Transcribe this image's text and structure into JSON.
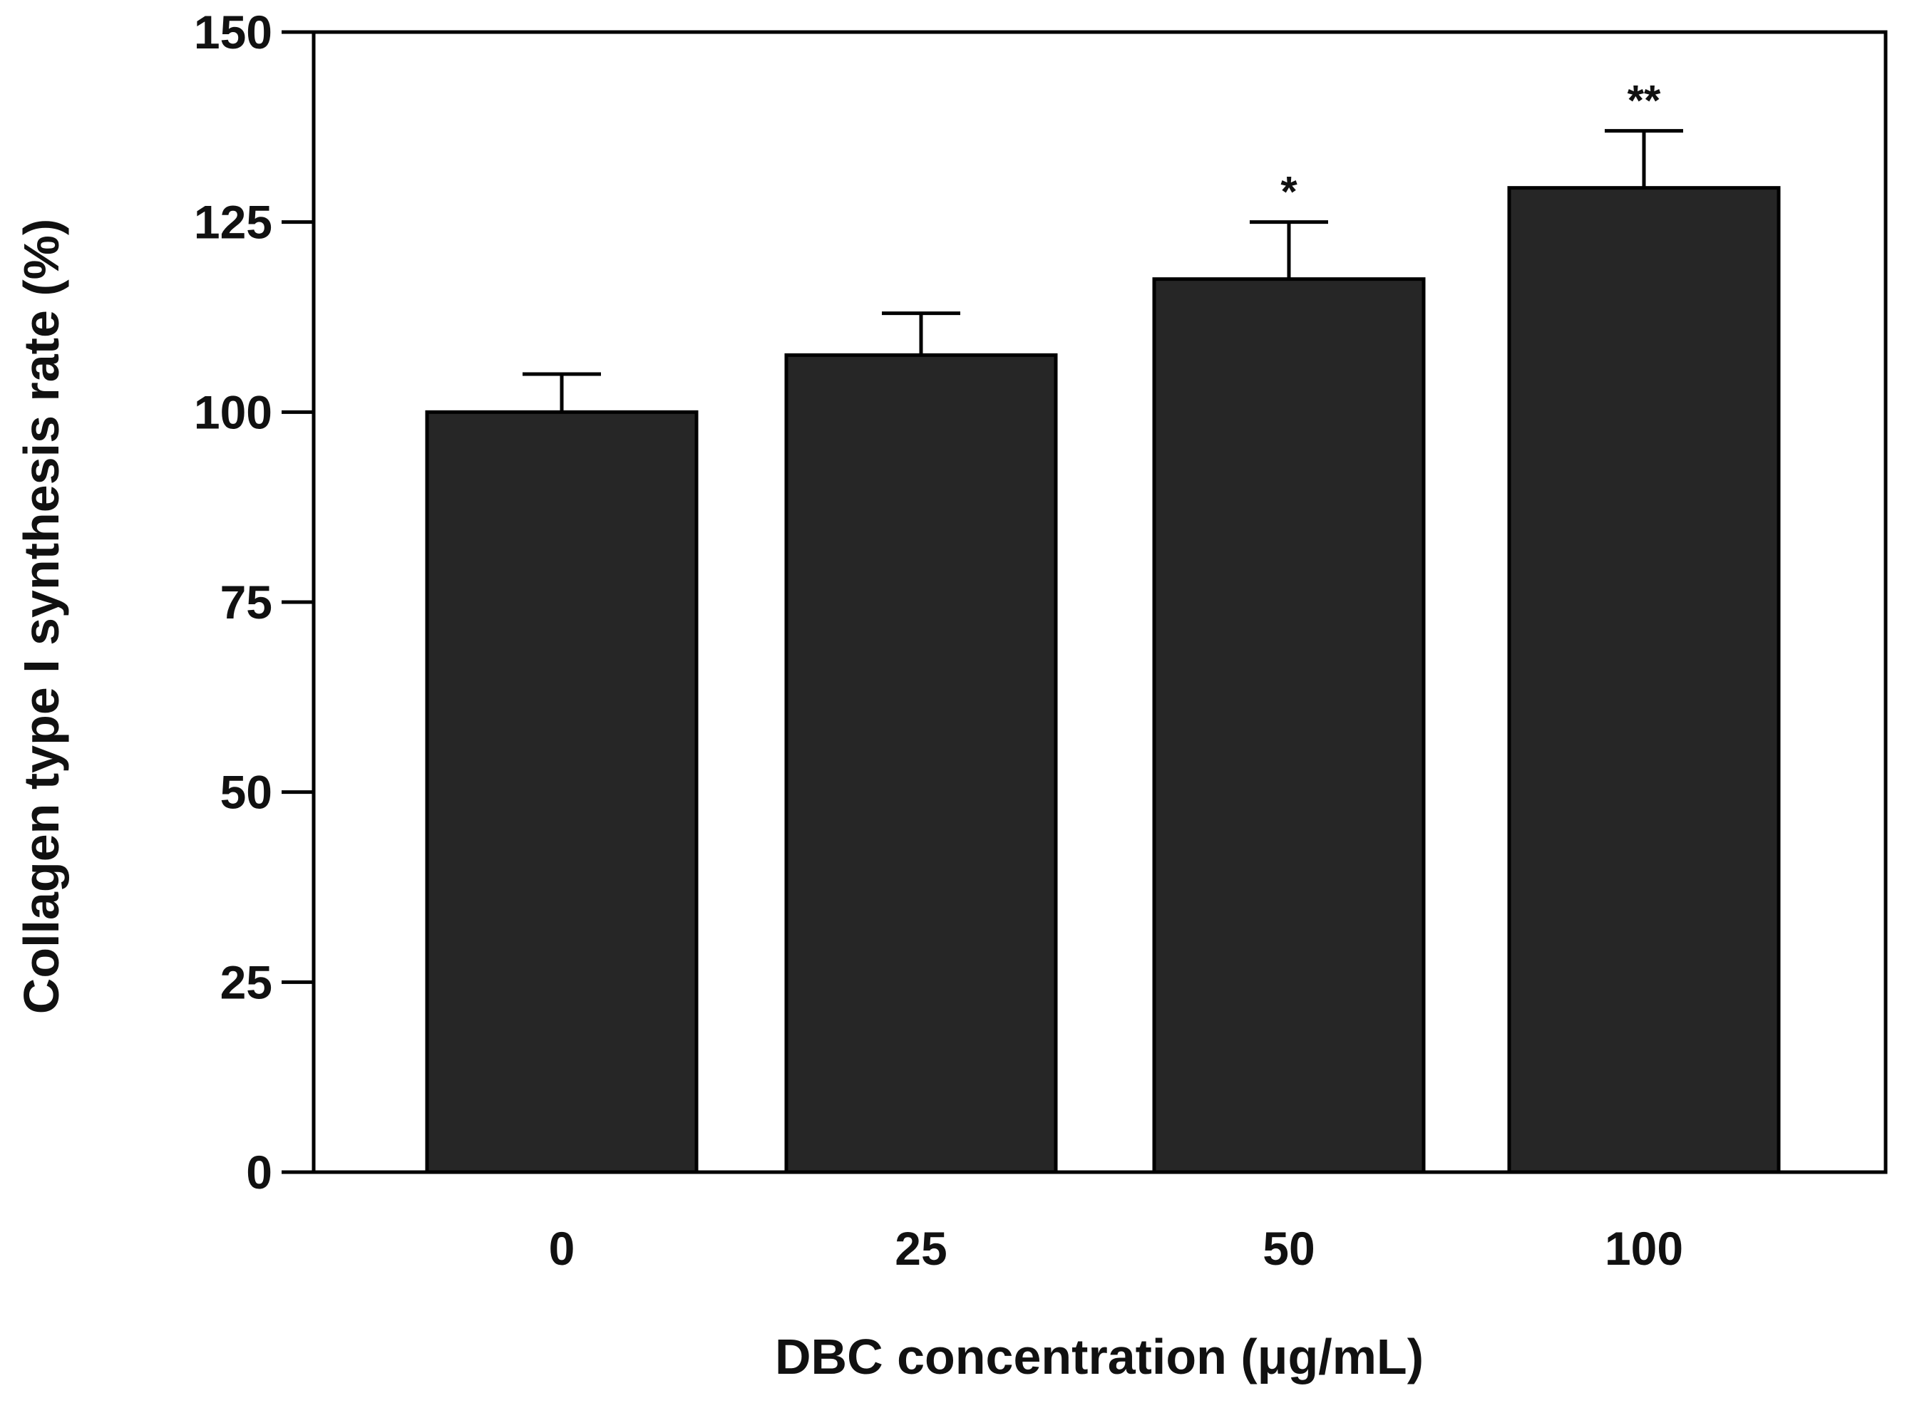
{
  "chart_data": {
    "type": "bar",
    "title": "",
    "xlabel": "DBC concentration  (μg/mL)",
    "ylabel": "Collagen type I synthesis rate (%)",
    "categories": [
      "0",
      "25",
      "50",
      "100"
    ],
    "values": [
      100,
      107.5,
      117.5,
      129.5
    ],
    "error": [
      5,
      5.5,
      7.5,
      7.5
    ],
    "significance": [
      "",
      "",
      "*",
      "**"
    ],
    "ylim": [
      0,
      150
    ],
    "yticks": [
      0,
      25,
      50,
      75,
      100,
      125,
      150
    ],
    "grid": false,
    "legend": "none",
    "bar_color": "#262626",
    "axis_color": "#000000"
  }
}
